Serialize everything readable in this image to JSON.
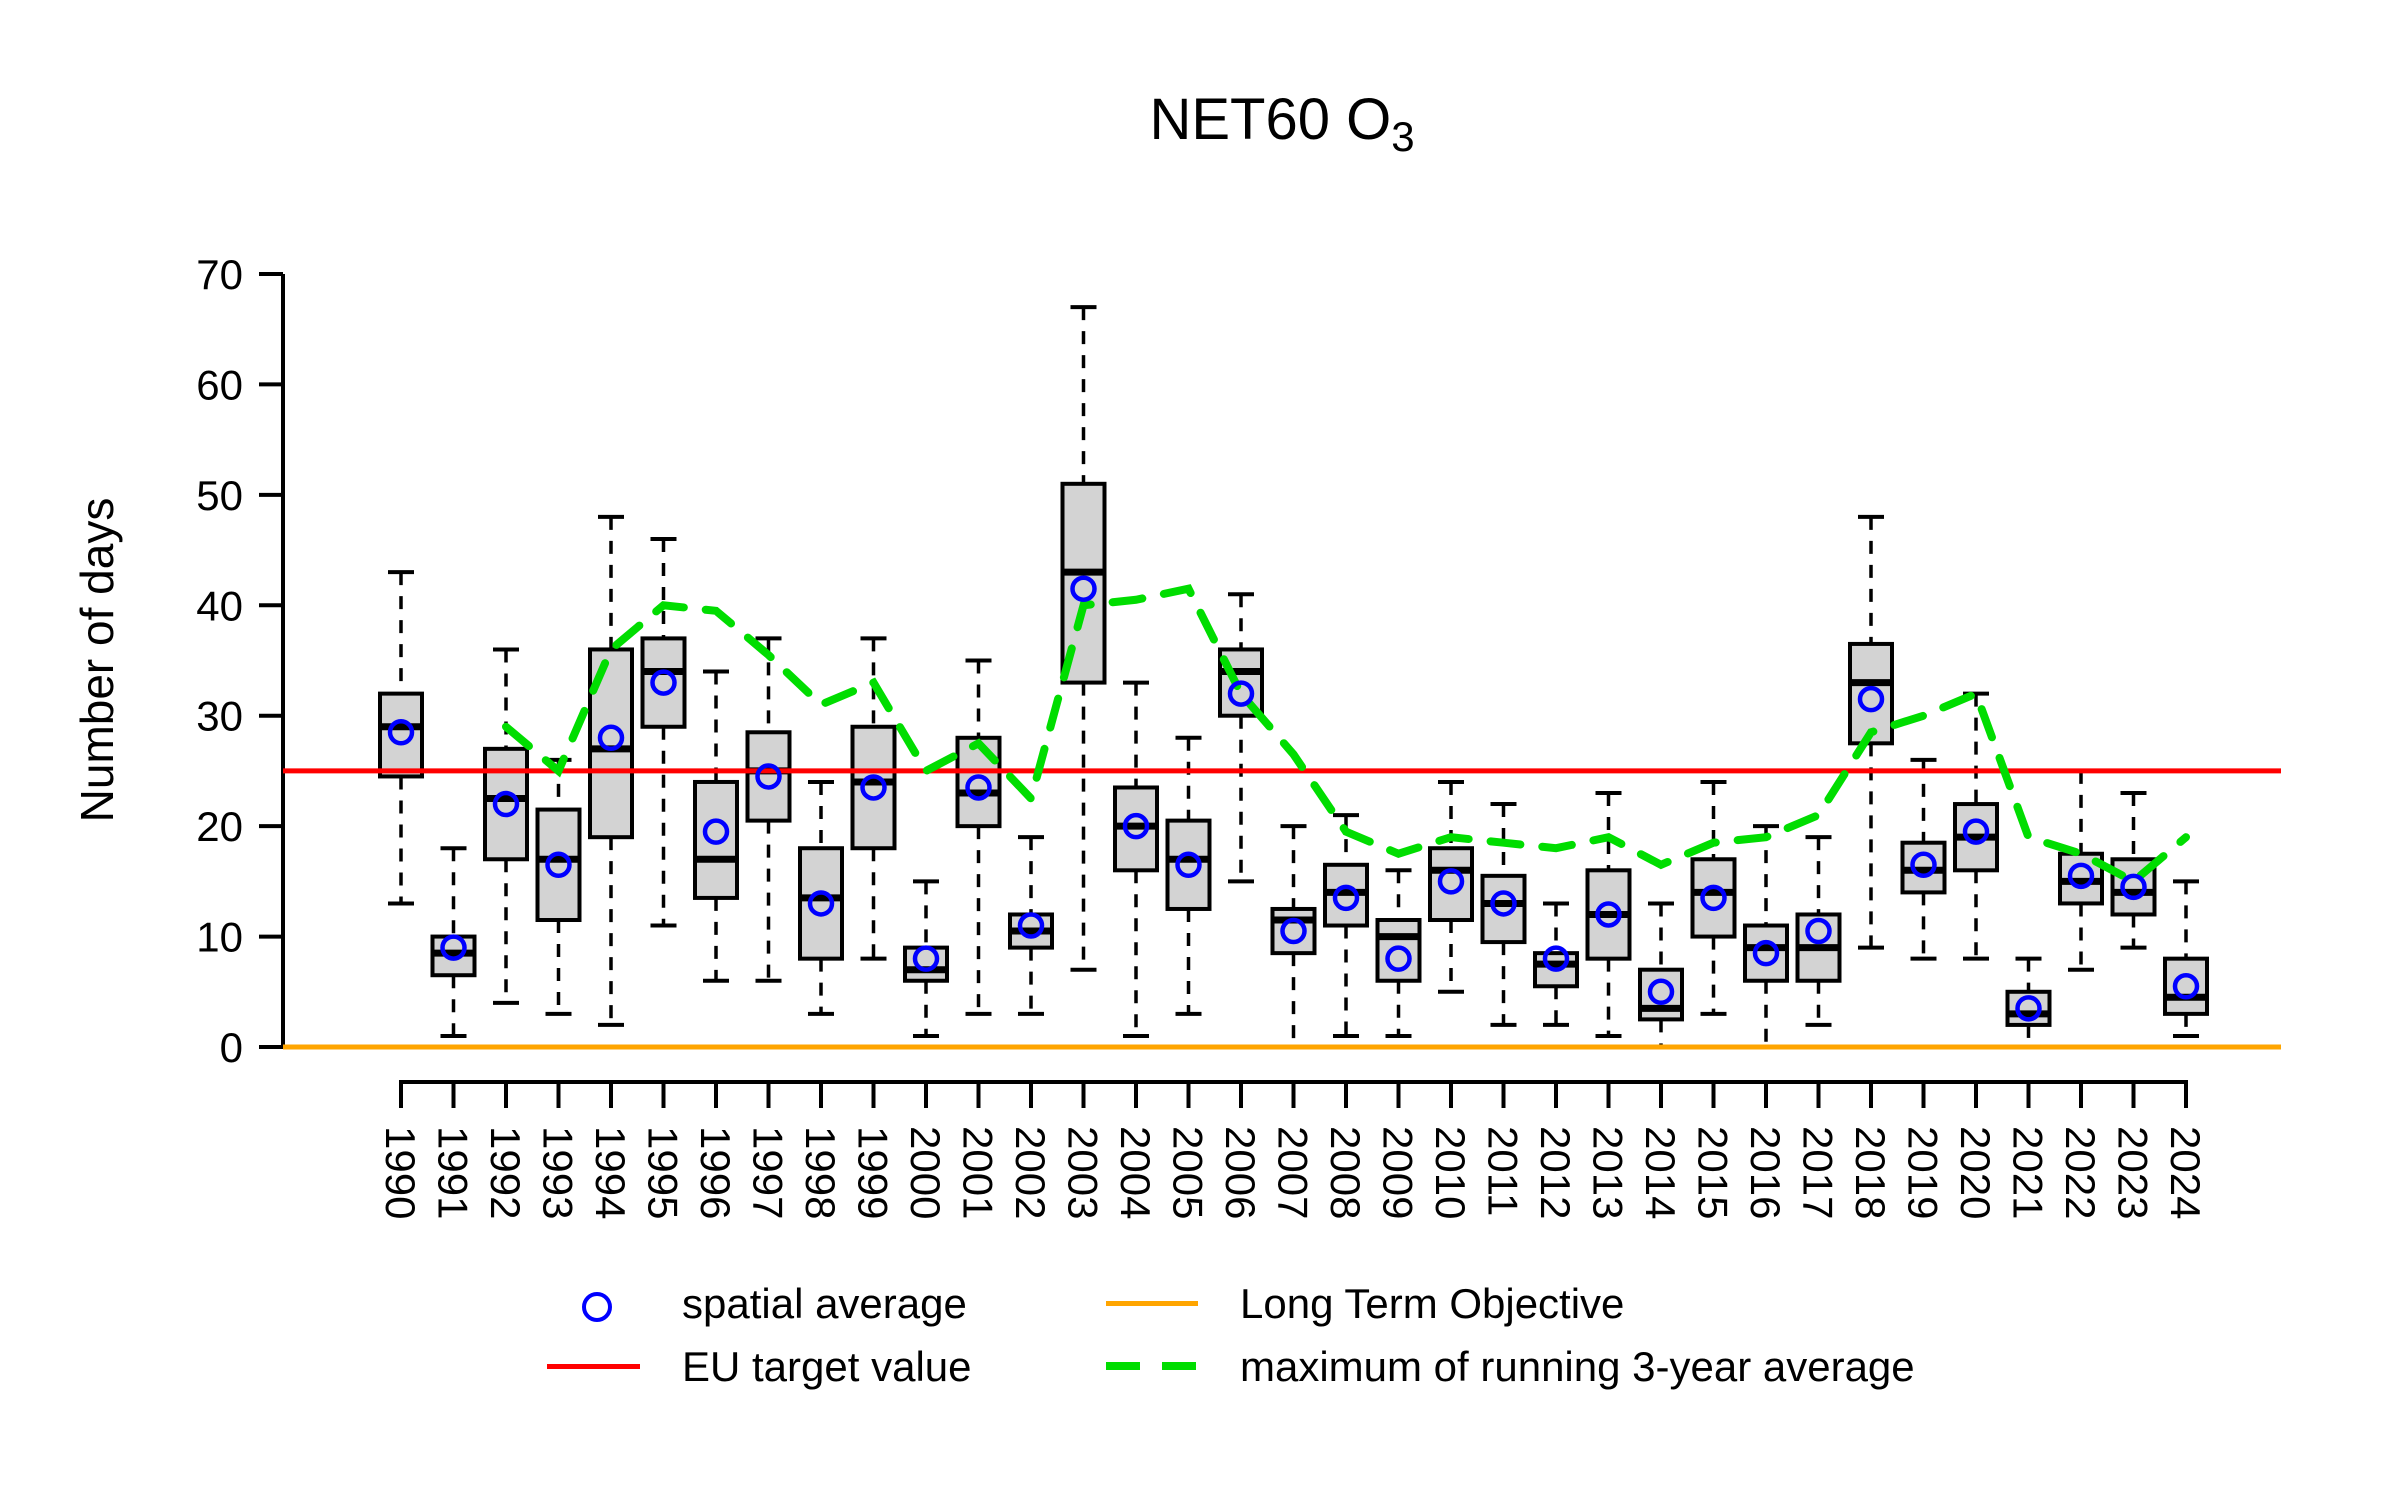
{
  "chart_data": {
    "type": "boxplot",
    "title_main": "NET60 O",
    "title_sub": "3",
    "ylabel": "Number of days",
    "ylim": [
      0,
      70
    ],
    "yticks": [
      0,
      10,
      20,
      30,
      40,
      50,
      60,
      70
    ],
    "grid": "off",
    "years": [
      1990,
      1991,
      1992,
      1993,
      1994,
      1995,
      1996,
      1997,
      1998,
      1999,
      2000,
      2001,
      2002,
      2003,
      2004,
      2005,
      2006,
      2007,
      2008,
      2009,
      2010,
      2011,
      2012,
      2013,
      2014,
      2015,
      2016,
      2017,
      2018,
      2019,
      2020,
      2021,
      2022,
      2023,
      2024
    ],
    "boxes": {
      "whisker_low": [
        13,
        1,
        4,
        3,
        2,
        11,
        6,
        6,
        3,
        8,
        1,
        3,
        3,
        7,
        1,
        3,
        15,
        0,
        1,
        1,
        5,
        2,
        2,
        1,
        0,
        3,
        0,
        2,
        9,
        8,
        8,
        0,
        7,
        9,
        1
      ],
      "q1": [
        24.5,
        6.5,
        17,
        11.5,
        19,
        29,
        13.5,
        20.5,
        8,
        18,
        6,
        20,
        9,
        33,
        16,
        12.5,
        30,
        8.5,
        11,
        6,
        11.5,
        9.5,
        5.5,
        8,
        2.5,
        10,
        6,
        6,
        27.5,
        14,
        16,
        2,
        13,
        12,
        3
      ],
      "median": [
        29,
        8.5,
        22.5,
        17,
        27,
        34,
        17,
        25,
        13.5,
        24,
        7,
        23,
        10.5,
        43,
        20,
        17,
        34,
        11.5,
        14,
        10,
        16,
        13,
        7.5,
        12,
        3.5,
        14,
        9,
        9,
        33,
        16,
        19,
        3,
        15,
        14,
        4.5
      ],
      "q3": [
        32,
        10,
        27,
        21.5,
        36,
        37,
        24,
        28.5,
        18,
        29,
        9,
        28,
        12,
        51,
        23.5,
        20.5,
        36,
        12.5,
        16.5,
        11.5,
        18,
        15.5,
        8.5,
        16,
        7,
        17,
        11,
        12,
        36.5,
        18.5,
        22,
        5,
        17.5,
        17,
        8
      ],
      "whisker_high": [
        43,
        18,
        36,
        26,
        48,
        46,
        34,
        37,
        24,
        37,
        15,
        35,
        19,
        67,
        33,
        28,
        41,
        20,
        21,
        16,
        24,
        22,
        13,
        23,
        13,
        24,
        20,
        19,
        48,
        26,
        32,
        8,
        25,
        23,
        15
      ]
    },
    "spatial_average": [
      28.5,
      9,
      22,
      16.5,
      28,
      33,
      19.5,
      24.5,
      13,
      23.5,
      8,
      23.5,
      11,
      41.5,
      20,
      16.5,
      32,
      10.5,
      13.5,
      8,
      15,
      13,
      8,
      12,
      5,
      13.5,
      8.5,
      10.5,
      31.5,
      16.5,
      19.5,
      3.5,
      15.5,
      14.5,
      5.5
    ],
    "max_running_3yr_avg": {
      "years": [
        1992,
        1993,
        1994,
        1995,
        1996,
        1997,
        1998,
        1999,
        2000,
        2001,
        2002,
        2003,
        2004,
        2005,
        2006,
        2007,
        2008,
        2009,
        2010,
        2011,
        2012,
        2013,
        2014,
        2015,
        2016,
        2017,
        2018,
        2019,
        2020,
        2021,
        2022,
        2023,
        2024
      ],
      "values": [
        29,
        25,
        36,
        40,
        39.5,
        35.5,
        31,
        33,
        25,
        27.5,
        22.5,
        40,
        40.5,
        41.5,
        32,
        26.5,
        19.5,
        17.5,
        19,
        18.5,
        18,
        19,
        16.5,
        18.5,
        19,
        21,
        28.5,
        30,
        32,
        19,
        17.5,
        15,
        19
      ]
    },
    "reference_lines": {
      "eu_target_value": 25,
      "long_term_objective": 0
    },
    "legend": {
      "spatial_average_label": "spatial average",
      "eu_target_label": "EU target value",
      "long_term_objective_label": "Long Term Objective",
      "running_avg_label": "maximum of running 3-year average"
    },
    "colors": {
      "box_fill": "#d3d3d3",
      "box_border": "#000000",
      "spatial_average": "#0000ff",
      "eu_target": "#ff0000",
      "long_term_objective": "#ffa500",
      "running_avg": "#00dd00"
    }
  }
}
